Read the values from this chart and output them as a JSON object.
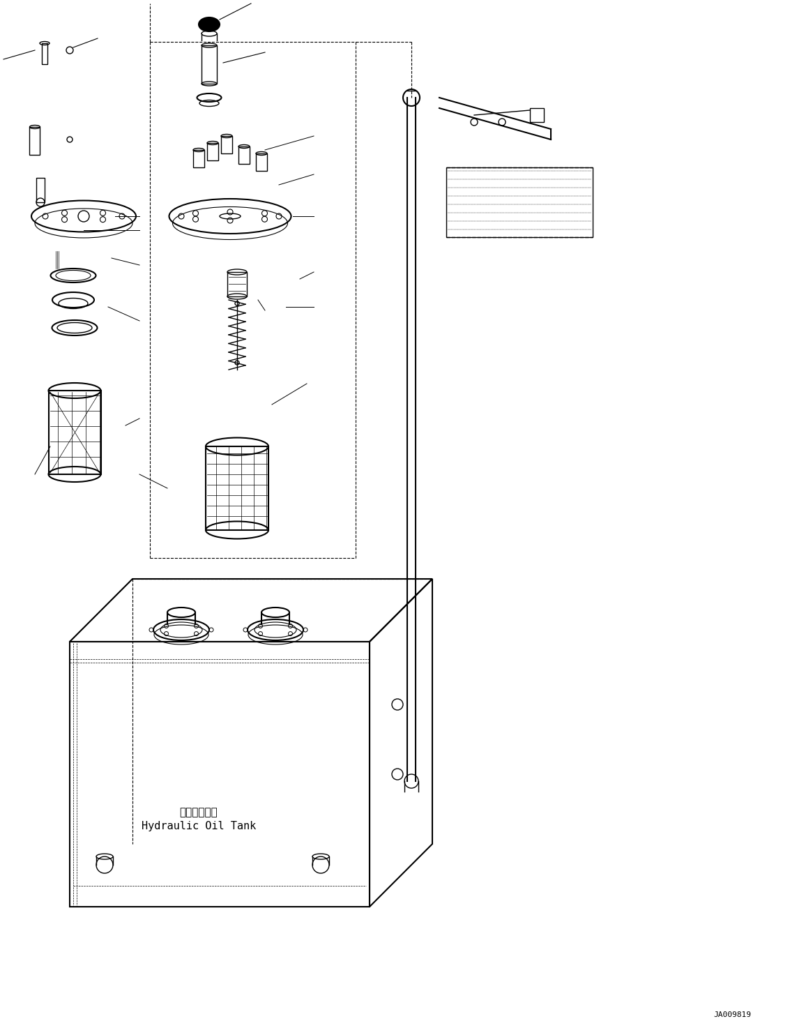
{
  "title": "",
  "background_color": "#ffffff",
  "line_color": "#000000",
  "label_ja": "作動油タンク",
  "label_en": "Hydraulic Oil Tank",
  "part_number": "JA009819",
  "fig_width": 11.43,
  "fig_height": 14.71,
  "dpi": 100
}
